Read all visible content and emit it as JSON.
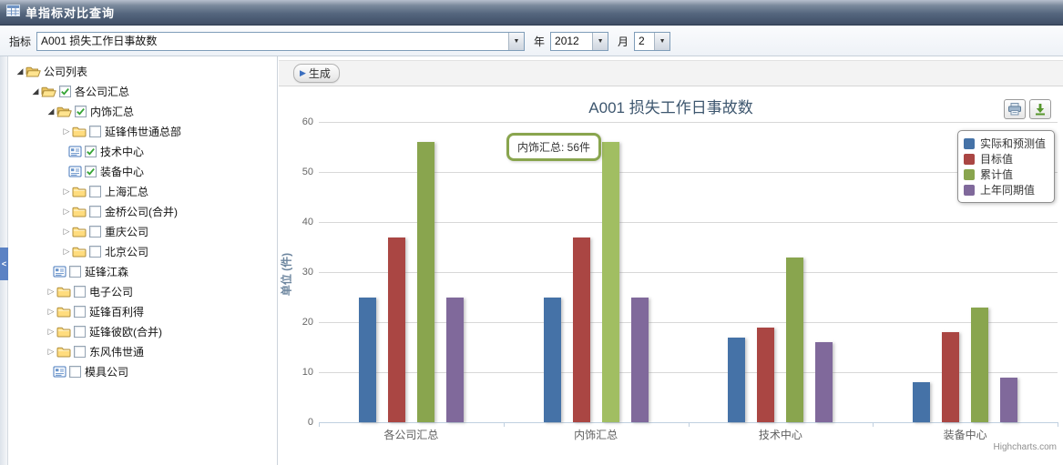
{
  "header": {
    "title": "单指标对比查询"
  },
  "toolbar": {
    "indicator_label": "指标",
    "indicator_value": "A001 损失工作日事故数",
    "year_label": "年",
    "year_value": "2012",
    "month_label": "月",
    "month_value": "2"
  },
  "actions": {
    "generate_label": "生成"
  },
  "sidebar": {
    "collapse_handle": "<",
    "tree": [
      {
        "label": "公司列表",
        "level": 0,
        "type": "folder",
        "expanded": true,
        "checkbox": null
      },
      {
        "label": "各公司汇总",
        "level": 1,
        "type": "folder",
        "expanded": true,
        "checkbox": "checked"
      },
      {
        "label": "内饰汇总",
        "level": 2,
        "type": "folder",
        "expanded": true,
        "checkbox": "checked"
      },
      {
        "label": "延锋伟世通总部",
        "level": 3,
        "type": "folder",
        "expanded": false,
        "checkbox": "unchecked"
      },
      {
        "label": "技术中心",
        "level": 3,
        "type": "leaf",
        "expanded": null,
        "checkbox": "checked"
      },
      {
        "label": "装备中心",
        "level": 3,
        "type": "leaf",
        "expanded": null,
        "checkbox": "checked"
      },
      {
        "label": "上海汇总",
        "level": 3,
        "type": "folder",
        "expanded": false,
        "checkbox": "unchecked"
      },
      {
        "label": "金桥公司(合并)",
        "level": 3,
        "type": "folder",
        "expanded": false,
        "checkbox": "unchecked"
      },
      {
        "label": "重庆公司",
        "level": 3,
        "type": "folder",
        "expanded": false,
        "checkbox": "unchecked"
      },
      {
        "label": "北京公司",
        "level": 3,
        "type": "folder",
        "expanded": false,
        "checkbox": "unchecked"
      },
      {
        "label": "延锋江森",
        "level": 2,
        "type": "leaf",
        "expanded": null,
        "checkbox": "unchecked"
      },
      {
        "label": "电子公司",
        "level": 2,
        "type": "folder",
        "expanded": false,
        "checkbox": "unchecked"
      },
      {
        "label": "延锋百利得",
        "level": 2,
        "type": "folder",
        "expanded": false,
        "checkbox": "unchecked"
      },
      {
        "label": "延锋彼欧(合并)",
        "level": 2,
        "type": "folder",
        "expanded": false,
        "checkbox": "unchecked"
      },
      {
        "label": "东风伟世通",
        "level": 2,
        "type": "folder",
        "expanded": false,
        "checkbox": "unchecked"
      },
      {
        "label": "模具公司",
        "level": 2,
        "type": "leaf",
        "expanded": null,
        "checkbox": "unchecked"
      }
    ]
  },
  "chart_data": {
    "type": "bar",
    "title": "A001 损失工作日事故数",
    "categories": [
      "各公司汇总",
      "内饰汇总",
      "技术中心",
      "装备中心"
    ],
    "series": [
      {
        "name": "实际和预测值",
        "color": "#4572A7",
        "values": [
          25,
          25,
          17,
          8
        ]
      },
      {
        "name": "目标值",
        "color": "#AA4643",
        "values": [
          37,
          37,
          19,
          18
        ]
      },
      {
        "name": "累计值",
        "color": "#89A54E",
        "values": [
          56,
          56,
          33,
          23
        ]
      },
      {
        "name": "上年同期值",
        "color": "#80699B",
        "values": [
          25,
          25,
          16,
          9
        ]
      }
    ],
    "highlight": {
      "category_index": 1,
      "series_index": 2,
      "hover_color": "#A1BE62"
    },
    "tooltip": {
      "text": "内饰汇总: 56件"
    },
    "xlabel": "",
    "ylabel": "单位 (件)",
    "ylim": [
      0,
      60
    ],
    "ytick_step": 10,
    "grid": true,
    "legend_position": "top-right",
    "credits": "Highcharts.com"
  }
}
